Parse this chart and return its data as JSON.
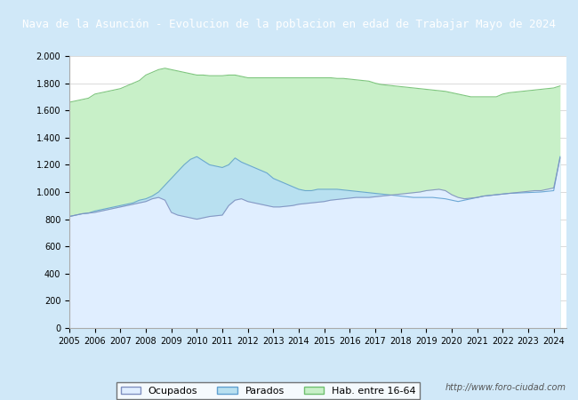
{
  "title": "Nava de la Asunción - Evolucion de la poblacion en edad de Trabajar Mayo de 2024",
  "title_bg": "#4a90d9",
  "title_color": "white",
  "footer_url": "http://www.foro-ciudad.com",
  "legend_labels": [
    "Ocupados",
    "Parados",
    "Hab. entre 16-64"
  ],
  "ylim": [
    0,
    2000
  ],
  "yticks": [
    0,
    200,
    400,
    600,
    800,
    1000,
    1200,
    1400,
    1600,
    1800,
    2000
  ],
  "xlim_start": 2005,
  "xlim_end": 2024.5,
  "color_ocupados": "#b0c4de",
  "color_parados": "#add8e6",
  "color_hab": "#90ee90",
  "years": [
    2005.0,
    2005.25,
    2005.5,
    2005.75,
    2006.0,
    2006.25,
    2006.5,
    2006.75,
    2007.0,
    2007.25,
    2007.5,
    2007.75,
    2008.0,
    2008.25,
    2008.5,
    2008.75,
    2009.0,
    2009.25,
    2009.5,
    2009.75,
    2010.0,
    2010.25,
    2010.5,
    2010.75,
    2011.0,
    2011.25,
    2011.5,
    2011.75,
    2012.0,
    2012.25,
    2012.5,
    2012.75,
    2013.0,
    2013.25,
    2013.5,
    2013.75,
    2014.0,
    2014.25,
    2014.5,
    2014.75,
    2015.0,
    2015.25,
    2015.5,
    2015.75,
    2016.0,
    2016.25,
    2016.5,
    2016.75,
    2017.0,
    2017.25,
    2017.5,
    2017.75,
    2018.0,
    2018.25,
    2018.5,
    2018.75,
    2019.0,
    2019.25,
    2019.5,
    2019.75,
    2020.0,
    2020.25,
    2020.5,
    2020.75,
    2021.0,
    2021.25,
    2021.5,
    2021.75,
    2022.0,
    2022.25,
    2022.5,
    2022.75,
    2023.0,
    2023.25,
    2023.5,
    2023.75,
    2024.0,
    2024.25
  ],
  "hab_16_64": [
    1660,
    1670,
    1680,
    1690,
    1720,
    1730,
    1740,
    1750,
    1760,
    1780,
    1800,
    1820,
    1860,
    1880,
    1900,
    1910,
    1900,
    1890,
    1880,
    1870,
    1860,
    1860,
    1855,
    1855,
    1855,
    1860,
    1860,
    1850,
    1840,
    1840,
    1840,
    1840,
    1840,
    1840,
    1840,
    1840,
    1840,
    1840,
    1840,
    1840,
    1840,
    1840,
    1835,
    1835,
    1830,
    1825,
    1820,
    1815,
    1800,
    1790,
    1785,
    1780,
    1775,
    1770,
    1765,
    1760,
    1755,
    1750,
    1745,
    1740,
    1730,
    1720,
    1710,
    1700,
    1700,
    1700,
    1700,
    1700,
    1720,
    1730,
    1735,
    1740,
    1745,
    1750,
    1755,
    1760,
    1765,
    1780
  ],
  "ocupados": [
    820,
    830,
    840,
    845,
    850,
    860,
    870,
    880,
    890,
    900,
    910,
    920,
    930,
    950,
    960,
    940,
    850,
    830,
    820,
    810,
    800,
    810,
    820,
    825,
    830,
    900,
    940,
    950,
    930,
    920,
    910,
    900,
    890,
    890,
    895,
    900,
    910,
    915,
    920,
    925,
    930,
    940,
    945,
    950,
    955,
    960,
    960,
    960,
    965,
    970,
    975,
    980,
    985,
    990,
    995,
    1000,
    1010,
    1015,
    1020,
    1010,
    980,
    960,
    950,
    955,
    960,
    970,
    975,
    980,
    985,
    990,
    995,
    1000,
    1005,
    1010,
    1010,
    1020,
    1030,
    1250
  ],
  "parados": [
    820,
    830,
    840,
    845,
    860,
    870,
    880,
    890,
    900,
    910,
    920,
    940,
    950,
    970,
    1000,
    1050,
    1100,
    1150,
    1200,
    1240,
    1260,
    1230,
    1200,
    1190,
    1180,
    1200,
    1250,
    1220,
    1200,
    1180,
    1160,
    1140,
    1100,
    1080,
    1060,
    1040,
    1020,
    1010,
    1010,
    1020,
    1020,
    1020,
    1020,
    1015,
    1010,
    1005,
    1000,
    995,
    990,
    985,
    980,
    975,
    970,
    965,
    960,
    960,
    960,
    960,
    955,
    950,
    940,
    930,
    940,
    950,
    960,
    970,
    975,
    980,
    985,
    990,
    992,
    994,
    996,
    998,
    1000,
    1005,
    1010,
    1260
  ]
}
